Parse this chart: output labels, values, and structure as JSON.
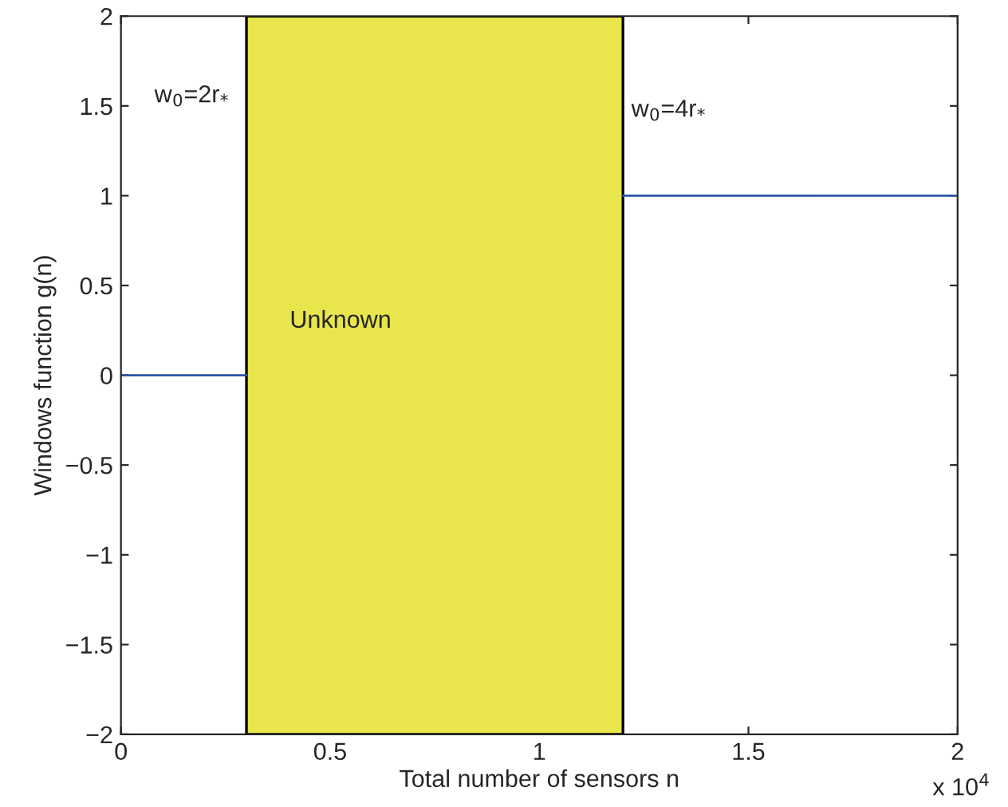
{
  "chart_data": {
    "type": "line",
    "xlabel": "Total number of sensors n",
    "ylabel": "Windows function g(n)",
    "series": [
      {
        "color": "#2b57a8",
        "x": [
          0,
          0.3
        ],
        "values": [
          0,
          0
        ]
      },
      {
        "color": "#2b57a8",
        "x": [
          1.2,
          2
        ],
        "values": [
          1,
          1
        ]
      }
    ],
    "bands": [
      {
        "axis": "x",
        "from": 0.3,
        "to": 1.2,
        "label": "Unknown",
        "color": "#e8e64c"
      }
    ],
    "annotations": [
      "w$_{0}$=2r$_{*}$",
      "w$_{0}$=4r$_{*}$",
      "x 10$^{4}$"
    ],
    "xlim": [
      0,
      2
    ],
    "xticks": [
      0,
      0.5,
      1,
      1.5,
      2
    ],
    "ylim": [
      -2,
      2
    ],
    "yticks": [
      {
        "value": -2,
        "label": "−2"
      },
      {
        "value": -1.5,
        "label": "−1.5"
      },
      {
        "value": -1,
        "label": "−1"
      },
      {
        "value": -0.5,
        "label": "−0.5"
      },
      0,
      0.5,
      1,
      1.5,
      2
    ],
    "grid": false,
    "line_style": "solid"
  }
}
